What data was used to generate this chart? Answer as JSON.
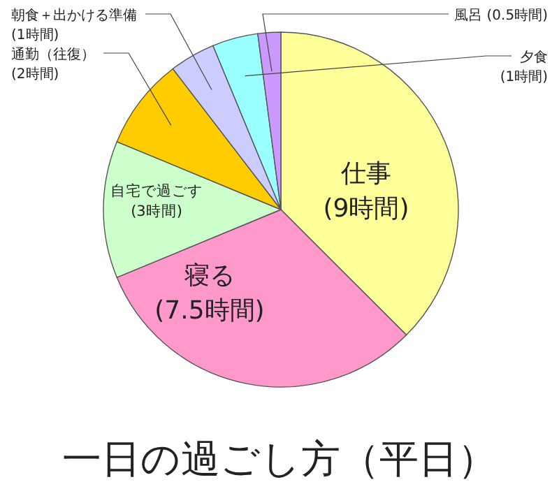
{
  "chart_data": {
    "type": "pie",
    "title": "一日の過ごし方（平日）",
    "categories": [
      "仕事",
      "寝る",
      "自宅で過ごす",
      "通勤（往復）",
      "朝食＋出かける準備",
      "夕食",
      "風呂"
    ],
    "values": [
      9,
      7.5,
      3,
      2,
      1,
      1,
      0.5
    ],
    "value_labels": [
      "(9時間)",
      "(7.5時間)",
      "(3時間)",
      "(2時間)",
      "(1時間)",
      "(1時間)",
      "(0.5時間)"
    ],
    "colors": [
      "#ffff99",
      "#ff99cc",
      "#ccffcc",
      "#ffcc00",
      "#ccccff",
      "#99ffff",
      "#cc99ff"
    ]
  }
}
